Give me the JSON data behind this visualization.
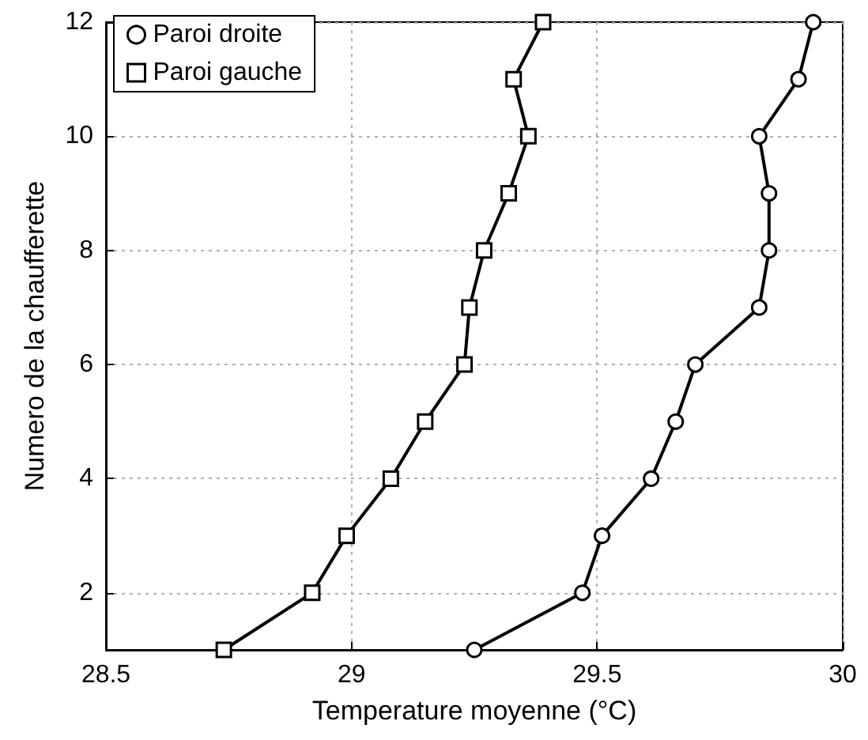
{
  "chart_data": {
    "type": "line",
    "xlabel": "Temperature moyenne (°C)",
    "ylabel": "Numero de la chaufferette",
    "xlim": [
      28.5,
      30
    ],
    "xticks": [
      28.5,
      29,
      29.5,
      30
    ],
    "ylim": [
      1,
      12
    ],
    "yticks": [
      2,
      4,
      6,
      8,
      10,
      12
    ],
    "grid": true,
    "legend": "top left",
    "line_style": "solid",
    "series": [
      {
        "name": "Paroi droite",
        "color": "#000000",
        "marker": "circle",
        "x": [
          29.25,
          29.47,
          29.51,
          29.61,
          29.66,
          29.7,
          29.83,
          29.85,
          29.85,
          29.83,
          29.91,
          29.94
        ],
        "values": [
          1,
          2,
          3,
          4,
          5,
          6,
          7,
          8,
          9,
          10,
          11,
          12
        ]
      },
      {
        "name": "Paroi gauche",
        "color": "#000000",
        "marker": "square",
        "x": [
          28.74,
          28.92,
          28.99,
          29.08,
          29.15,
          29.23,
          29.24,
          29.27,
          29.32,
          29.36,
          29.33,
          29.39
        ],
        "values": [
          1,
          2,
          3,
          4,
          5,
          6,
          7,
          8,
          9,
          10,
          11,
          12
        ]
      }
    ]
  }
}
